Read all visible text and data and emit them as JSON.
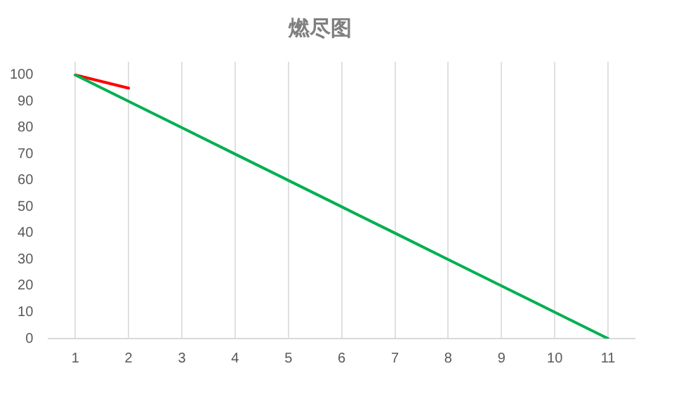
{
  "chart_data": {
    "type": "line",
    "title": "燃尽图",
    "categories": [
      "1",
      "2",
      "3",
      "4",
      "5",
      "6",
      "7",
      "8",
      "9",
      "10",
      "11"
    ],
    "series": [
      {
        "color": "#00b050",
        "values": [
          100,
          90,
          80,
          70,
          60,
          50,
          40,
          30,
          20,
          10,
          0
        ]
      },
      {
        "color": "#ff0000",
        "values": [
          100,
          95,
          null,
          null,
          null,
          null,
          null,
          null,
          null,
          null,
          null
        ]
      }
    ],
    "ylim": [
      0,
      105
    ],
    "yticks": [
      0,
      10,
      20,
      30,
      40,
      50,
      60,
      70,
      80,
      90,
      100
    ],
    "grid": "x",
    "legend": false,
    "marker": "none",
    "line_style": "solid"
  }
}
